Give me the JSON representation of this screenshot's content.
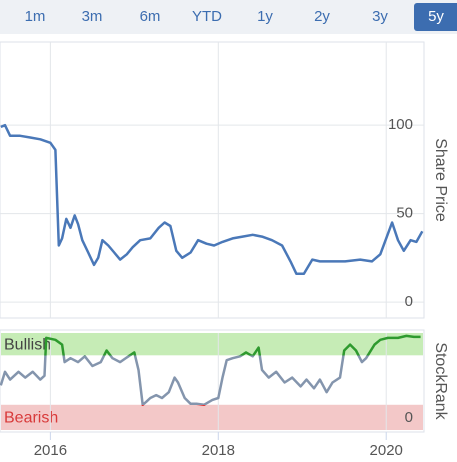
{
  "range_selector": {
    "buttons": [
      "1m",
      "3m",
      "6m",
      "YTD",
      "1y",
      "2y",
      "3y",
      "5y"
    ],
    "selected": 7
  },
  "chart_data": [
    {
      "type": "line",
      "y_axis_label": "Share Price",
      "color": "#4a78b8",
      "x": [
        2015.41,
        2015.46,
        2015.52,
        2015.64,
        2015.76,
        2015.88,
        2016.0,
        2016.06,
        2016.1,
        2016.14,
        2016.19,
        2016.24,
        2016.29,
        2016.33,
        2016.38,
        2016.45,
        2016.52,
        2016.57,
        2016.62,
        2016.69,
        2016.76,
        2016.83,
        2016.91,
        2016.98,
        2017.07,
        2017.19,
        2017.29,
        2017.36,
        2017.43,
        2017.5,
        2017.57,
        2017.67,
        2017.76,
        2017.86,
        2017.95,
        2018.05,
        2018.17,
        2018.29,
        2018.41,
        2018.52,
        2018.64,
        2018.76,
        2018.86,
        2018.93,
        2019.02,
        2019.12,
        2019.21,
        2019.33,
        2019.51,
        2019.69,
        2019.83,
        2019.93,
        2020.0,
        2020.07,
        2020.14,
        2020.21,
        2020.29,
        2020.36,
        2020.43
      ],
      "values": [
        99,
        100,
        94,
        94,
        93,
        92,
        90,
        86,
        32,
        36,
        47,
        42,
        49,
        44,
        35,
        28,
        21,
        25,
        35,
        32,
        28,
        24,
        27,
        31,
        35,
        36,
        42,
        45,
        43,
        29,
        25,
        28,
        35,
        33,
        32,
        34,
        36,
        37,
        38,
        37,
        35,
        32,
        23,
        16,
        16,
        24,
        23,
        23,
        23,
        24,
        23,
        27,
        36,
        45,
        35,
        29,
        35,
        34,
        40
      ],
      "xlim": [
        2015.4,
        2020.45
      ],
      "ylim": [
        -9,
        147
      ],
      "yticks": [
        0,
        50,
        100
      ],
      "grid": true
    },
    {
      "type": "line",
      "y_axis_label": "StockRank",
      "color": "#8495ad",
      "bull_color": "#2e9a2e",
      "bear_color": "#e03030",
      "bands": [
        {
          "label": "Bullish",
          "from": 77,
          "to": 100,
          "color": "#c6ecb6"
        },
        {
          "label": "Bearish",
          "from": 0,
          "to": 26,
          "color": "#f3c8c8"
        }
      ],
      "x": [
        2015.41,
        2015.46,
        2015.52,
        2015.62,
        2015.7,
        2015.79,
        2015.88,
        2015.93,
        2015.95,
        2016.06,
        2016.14,
        2016.17,
        2016.24,
        2016.33,
        2016.41,
        2016.5,
        2016.6,
        2016.67,
        2016.74,
        2016.83,
        2016.93,
        2017.0,
        2017.05,
        2017.1,
        2017.14,
        2017.19,
        2017.26,
        2017.33,
        2017.41,
        2017.48,
        2017.52,
        2017.6,
        2017.67,
        2017.74,
        2017.83,
        2017.93,
        2018.0,
        2018.05,
        2018.1,
        2018.17,
        2018.26,
        2018.33,
        2018.41,
        2018.48,
        2018.52,
        2018.6,
        2018.69,
        2018.79,
        2018.88,
        2018.98,
        2019.05,
        2019.14,
        2019.21,
        2019.29,
        2019.36,
        2019.45,
        2019.5,
        2019.57,
        2019.64,
        2019.71,
        2019.76,
        2019.86,
        2019.93,
        2020.02,
        2020.14,
        2020.24,
        2020.33,
        2020.41
      ],
      "values": [
        46,
        60,
        52,
        60,
        54,
        60,
        52,
        56,
        95,
        93,
        88,
        70,
        74,
        70,
        76,
        66,
        70,
        82,
        74,
        70,
        76,
        80,
        62,
        26,
        29,
        33,
        36,
        33,
        39,
        54,
        49,
        33,
        27,
        27,
        26,
        31,
        33,
        54,
        72,
        74,
        76,
        80,
        76,
        85,
        62,
        54,
        60,
        49,
        54,
        45,
        52,
        43,
        52,
        39,
        49,
        54,
        82,
        88,
        82,
        70,
        74,
        88,
        93,
        95,
        95,
        97,
        96,
        96
      ],
      "xlim": [
        2015.4,
        2020.45
      ],
      "ylim": [
        0,
        100
      ],
      "yticks": [
        0
      ],
      "xticks": [
        2016,
        2018,
        2020
      ],
      "grid": true
    }
  ]
}
